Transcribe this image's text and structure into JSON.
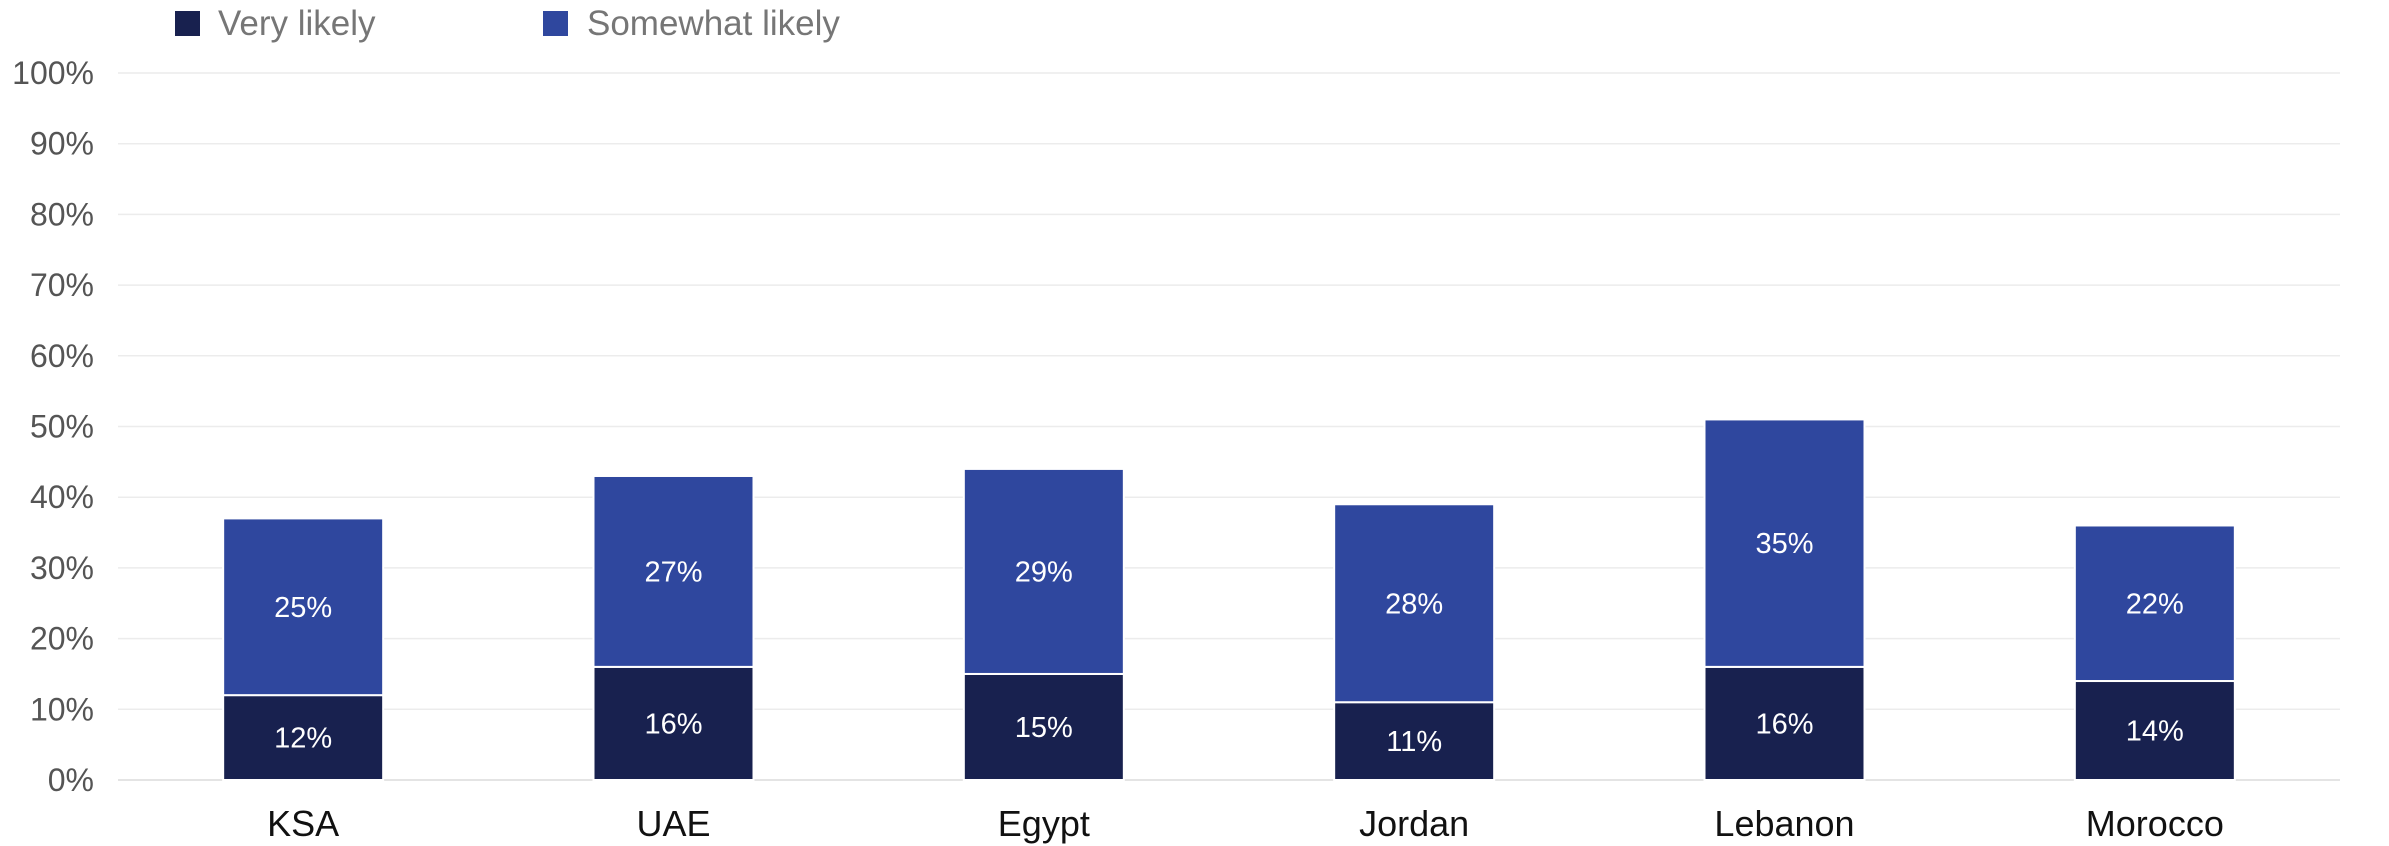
{
  "chart_data": {
    "type": "bar",
    "stacked": true,
    "categories": [
      "KSA",
      "UAE",
      "Egypt",
      "Jordan",
      "Lebanon",
      "Morocco"
    ],
    "series": [
      {
        "name": "Very likely",
        "color": "#18214f",
        "values": [
          12,
          16,
          15,
          11,
          16,
          14
        ],
        "labels": [
          "12%",
          "16%",
          "15%",
          "11%",
          "16%",
          "14%"
        ]
      },
      {
        "name": "Somewhat likely",
        "color": "#2f479e",
        "values": [
          25,
          27,
          29,
          28,
          35,
          22
        ],
        "labels": [
          "25%",
          "27%",
          "29%",
          "28%",
          "35%",
          "22%"
        ]
      }
    ],
    "y_ticks": [
      "0%",
      "10%",
      "20%",
      "30%",
      "40%",
      "50%",
      "60%",
      "70%",
      "80%",
      "90%",
      "100%"
    ],
    "ylim": [
      0,
      100
    ],
    "grid": true,
    "legend_position": "top-left"
  }
}
